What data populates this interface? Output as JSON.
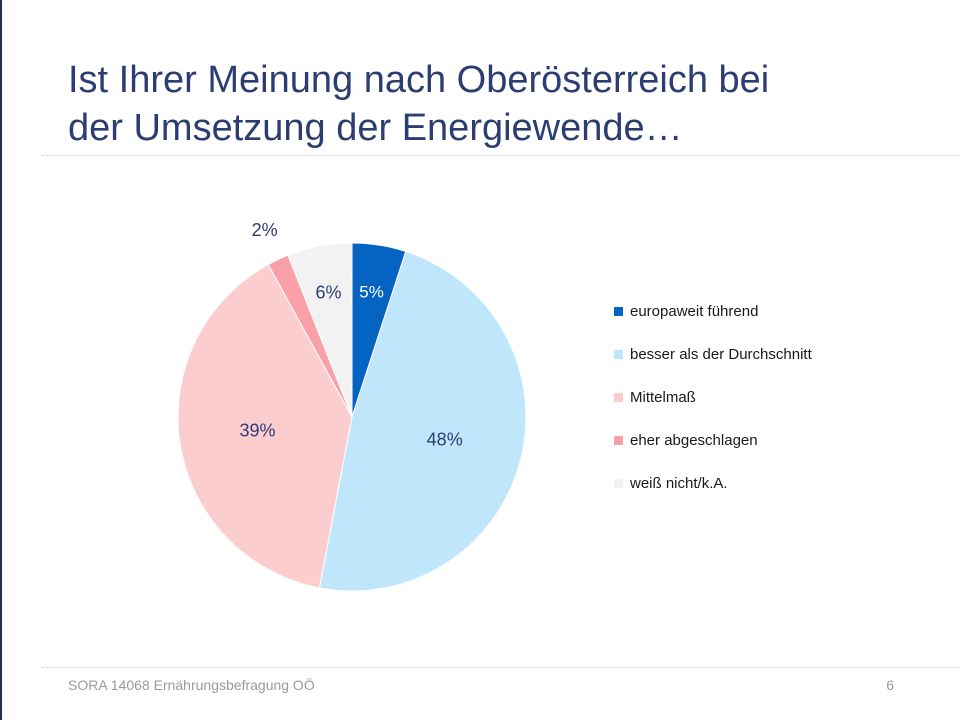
{
  "slide": {
    "title": "Ist Ihrer Meinung nach Oberösterreich  bei\nder Umsetzung der Energiewende…",
    "footer": "SORA 14068 Ernährungsbefragung OÖ",
    "page_number": "6"
  },
  "chart_data": {
    "type": "pie",
    "title": "",
    "legend_position": "right",
    "slices": [
      {
        "label": "europaweit führend",
        "value": 5,
        "value_label": "5%",
        "color": "#0563c1"
      },
      {
        "label": "besser als der Durchschnitt",
        "value": 48,
        "value_label": "48%",
        "color": "#bfe6fb"
      },
      {
        "label": "Mittelmaß",
        "value": 39,
        "value_label": "39%",
        "color": "#fccdce"
      },
      {
        "label": "eher abgeschlagen",
        "value": 2,
        "value_label": "2%",
        "color": "#f9a0a8"
      },
      {
        "label": "weiß nicht/k.A.",
        "value": 6,
        "value_label": "6%",
        "color": "#f2f2f2"
      }
    ],
    "label_colors": {
      "inside_dark_slice": "#ffffff",
      "default": "#2b3d73"
    }
  }
}
